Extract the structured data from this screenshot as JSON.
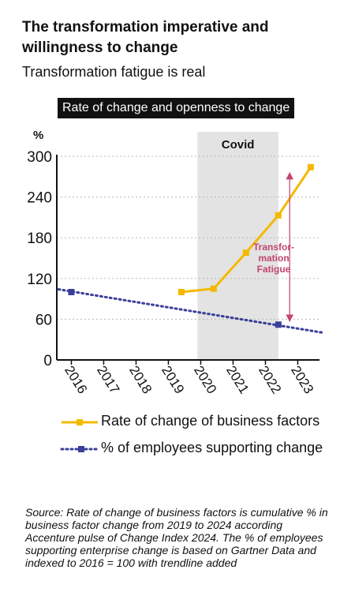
{
  "title": "The transformation imperative and willingness to change",
  "subtitle": "Transformation fatigue is real",
  "banner": "Rate of change and openness to change",
  "chart_data": {
    "type": "line",
    "ylabel": "%",
    "ylim": [
      0,
      300
    ],
    "yticks": [
      0,
      60,
      120,
      180,
      240,
      300
    ],
    "categories": [
      "2016",
      "2017",
      "2018",
      "2019",
      "2020",
      "2021",
      "2022",
      "2023"
    ],
    "grid": true,
    "shaded_region": {
      "label": "Covid",
      "from": 2019.9,
      "to": 2022.4
    },
    "annotation": {
      "lines": [
        "Transfor-",
        "mation",
        "Fatigue"
      ],
      "x": 2022.75,
      "from": 52,
      "to": 283,
      "color": "#c2456e"
    },
    "series": [
      {
        "name": "Rate of change of business factors",
        "color": "#f5b800",
        "style": "solid",
        "x": [
          2019.4,
          2020.4,
          2021.4,
          2022.4,
          2023.4
        ],
        "values": [
          100,
          105,
          158,
          213,
          284
        ]
      },
      {
        "name": "% of employees supporting change",
        "color": "#3a3f99",
        "style": "dotted",
        "x": [
          2016,
          2022.4
        ],
        "values": [
          100,
          52
        ],
        "trendline": {
          "x": [
            2015.6,
            2023.8
          ],
          "values": [
            104,
            40
          ]
        }
      }
    ],
    "legend": "bottom"
  },
  "source": "Source: Rate of change of business factors is cumulative % in business factor change from 2019 to 2024 according Accenture pulse of Change Index 2024. The % of employees supporting enterprise change is based on Gartner Data and indexed to 2016 = 100 with trendline added"
}
